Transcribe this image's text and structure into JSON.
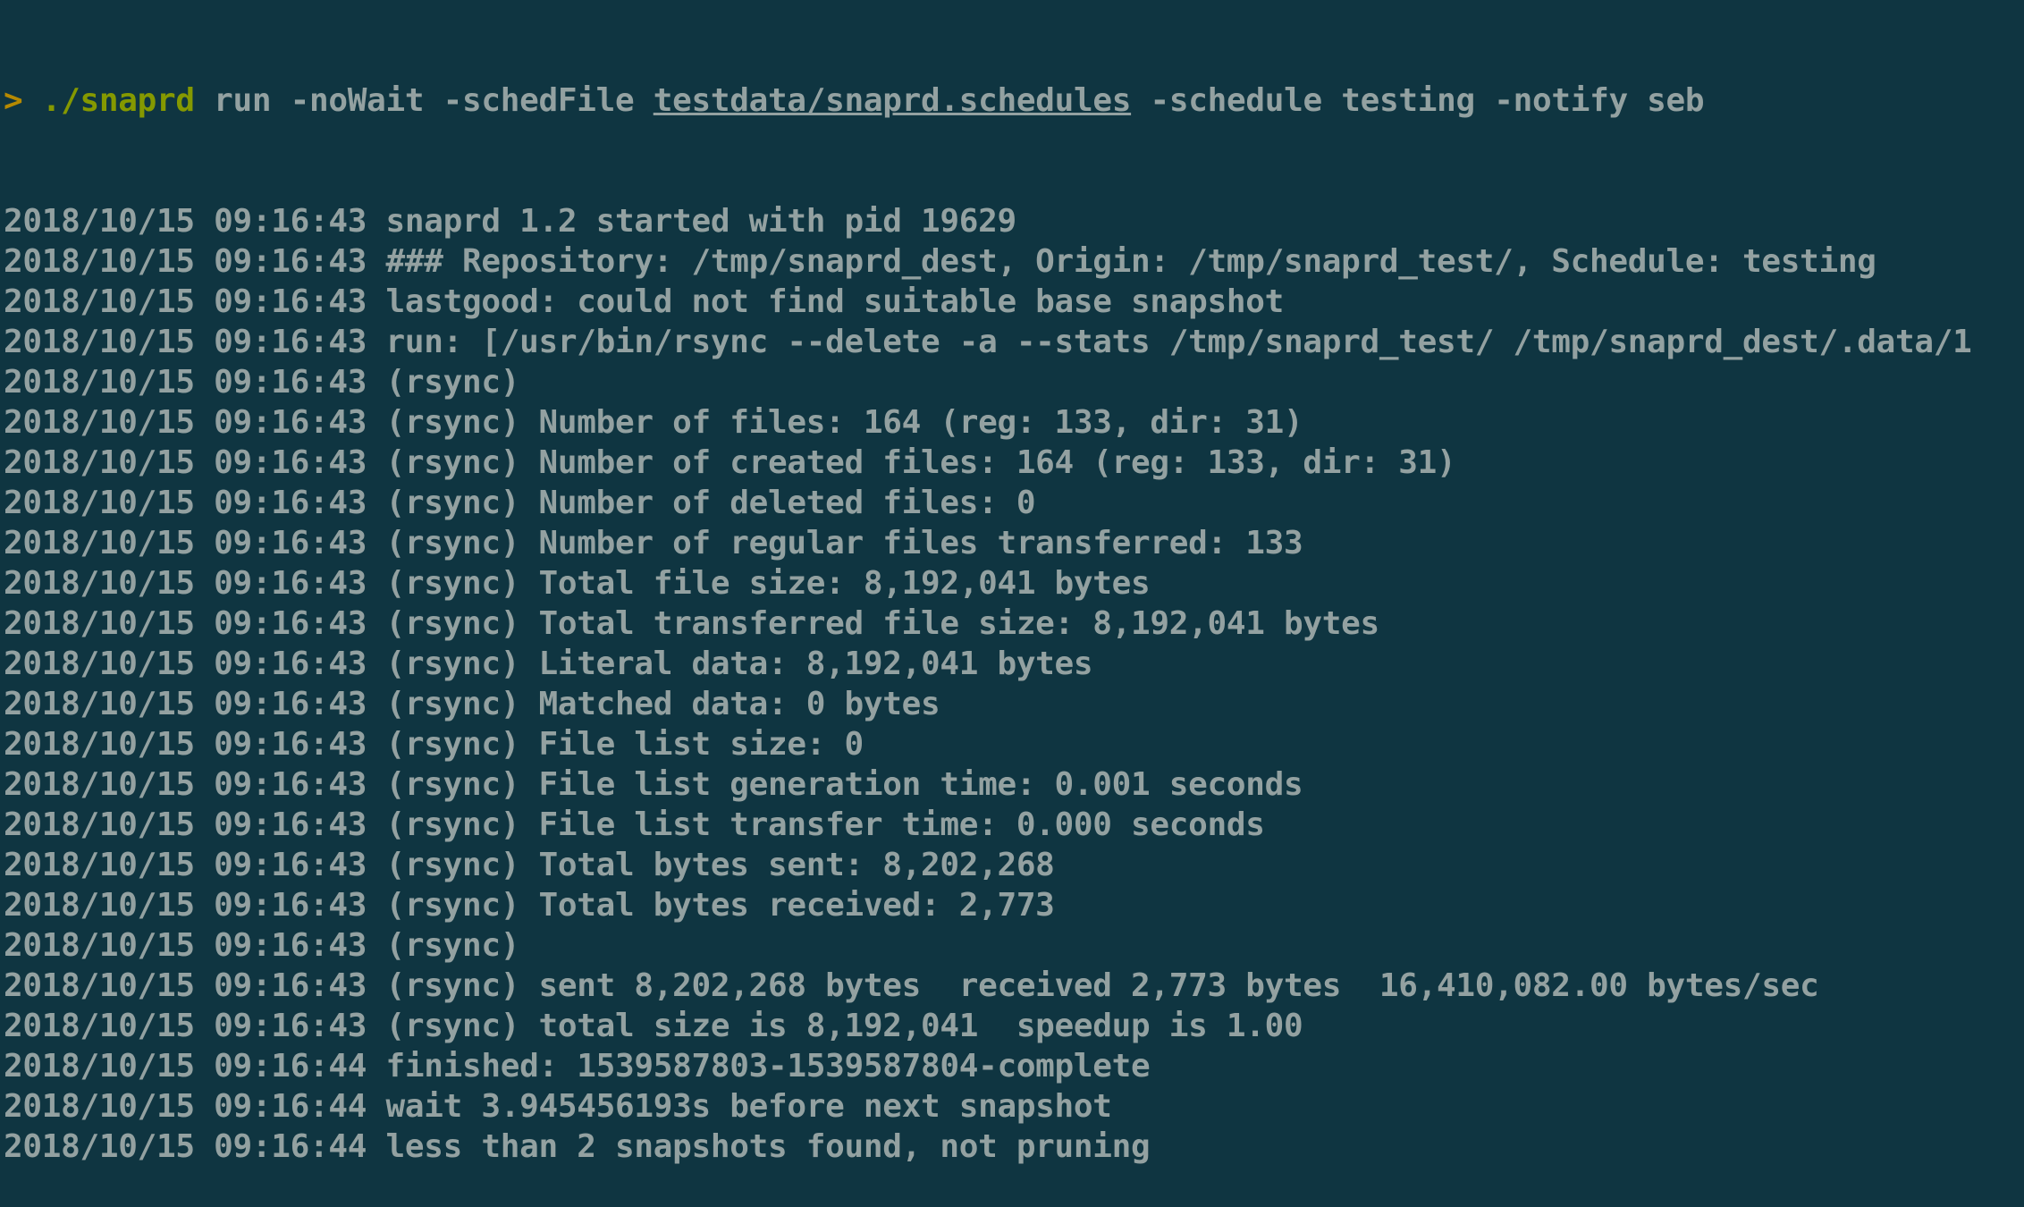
{
  "terminal": {
    "command": {
      "prompt": ">",
      "program": "./snaprd",
      "args_before": " run -noWait -schedFile ",
      "sched_file": "testdata/snaprd.schedules",
      "args_after": " -schedule testing -notify seb"
    },
    "lines": [
      "2018/10/15 09:16:43 snaprd 1.2 started with pid 19629",
      "2018/10/15 09:16:43 ### Repository: /tmp/snaprd_dest, Origin: /tmp/snaprd_test/, Schedule: testing",
      "2018/10/15 09:16:43 lastgood: could not find suitable base snapshot",
      "2018/10/15 09:16:43 run: [/usr/bin/rsync --delete -a --stats /tmp/snaprd_test/ /tmp/snaprd_dest/.data/1",
      "2018/10/15 09:16:43 (rsync)",
      "2018/10/15 09:16:43 (rsync) Number of files: 164 (reg: 133, dir: 31)",
      "2018/10/15 09:16:43 (rsync) Number of created files: 164 (reg: 133, dir: 31)",
      "2018/10/15 09:16:43 (rsync) Number of deleted files: 0",
      "2018/10/15 09:16:43 (rsync) Number of regular files transferred: 133",
      "2018/10/15 09:16:43 (rsync) Total file size: 8,192,041 bytes",
      "2018/10/15 09:16:43 (rsync) Total transferred file size: 8,192,041 bytes",
      "2018/10/15 09:16:43 (rsync) Literal data: 8,192,041 bytes",
      "2018/10/15 09:16:43 (rsync) Matched data: 0 bytes",
      "2018/10/15 09:16:43 (rsync) File list size: 0",
      "2018/10/15 09:16:43 (rsync) File list generation time: 0.001 seconds",
      "2018/10/15 09:16:43 (rsync) File list transfer time: 0.000 seconds",
      "2018/10/15 09:16:43 (rsync) Total bytes sent: 8,202,268",
      "2018/10/15 09:16:43 (rsync) Total bytes received: 2,773",
      "2018/10/15 09:16:43 (rsync)",
      "2018/10/15 09:16:43 (rsync) sent 8,202,268 bytes  received 2,773 bytes  16,410,082.00 bytes/sec",
      "2018/10/15 09:16:43 (rsync) total size is 8,192,041  speedup is 1.00",
      "2018/10/15 09:16:44 finished: 1539587803-1539587804-complete",
      "2018/10/15 09:16:44 wait 3.945456193s before next snapshot",
      "2018/10/15 09:16:44 less than 2 snapshots found, not pruning"
    ],
    "colors": {
      "background": "#0f3541",
      "text": "#93a1a1",
      "prompt": "#b58900",
      "command": "#859900"
    }
  }
}
